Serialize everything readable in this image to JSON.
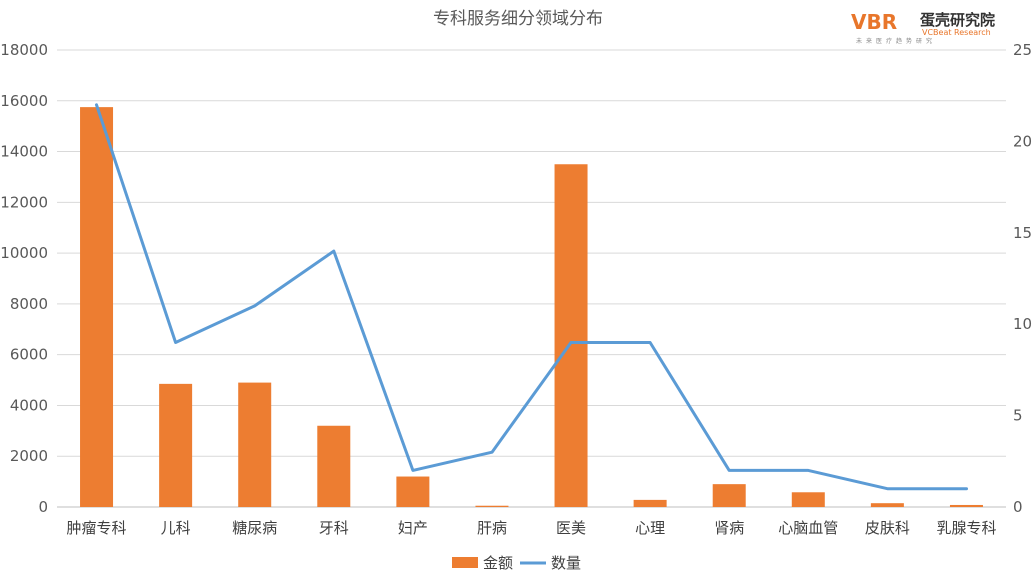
{
  "logo": {
    "mark": "VBR",
    "name": "蛋壳研究院",
    "english": "VCBeat Research",
    "tagline": "未来医疗趋势研究"
  },
  "chart_data": {
    "type": "bar",
    "title": "专科服务细分领域分布",
    "categories": [
      "肿瘤专科",
      "儿科",
      "糖尿病",
      "牙科",
      "妇产",
      "肝病",
      "医美",
      "心理",
      "肾病",
      "心脑血管",
      "皮肤科",
      "乳腺专科"
    ],
    "series": [
      {
        "name": "金额",
        "type": "bar",
        "axis": "left",
        "color": "#ed7d31",
        "values": [
          15750,
          4850,
          4900,
          3200,
          1200,
          50,
          13500,
          280,
          900,
          580,
          150,
          80
        ]
      },
      {
        "name": "数量",
        "type": "line",
        "axis": "right",
        "color": "#5b9bd5",
        "values": [
          22,
          9,
          11,
          14,
          2,
          3,
          9,
          9,
          2,
          2,
          1,
          1
        ]
      }
    ],
    "y_left": {
      "min": 0,
      "max": 18000,
      "step": 2000,
      "ticks": [
        "0",
        "2000",
        "4000",
        "6000",
        "8000",
        "10000",
        "12000",
        "14000",
        "16000",
        "18000"
      ]
    },
    "y_right": {
      "min": 0,
      "max": 25,
      "step": 5,
      "ticks": [
        "0",
        "5",
        "10",
        "15",
        "20",
        "25"
      ]
    },
    "grid": true,
    "legend": "bottom-center"
  }
}
